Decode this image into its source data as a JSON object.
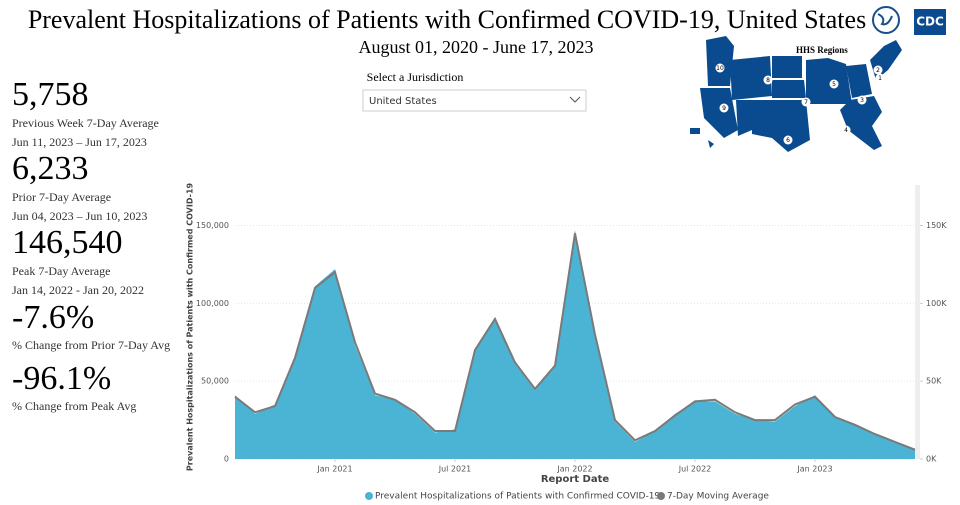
{
  "header": {
    "title": "Prevalent Hospitalizations of Patients with Confirmed COVID-19, United States",
    "subtitle": "August 01, 2020 - June 17, 2023",
    "logo_text": "CDC"
  },
  "kpis": [
    {
      "value": "5,758",
      "label": "Previous Week 7-Day Average",
      "dates": "Jun 11, 2023 – Jun 17, 2023"
    },
    {
      "value": "6,233",
      "label": "Prior 7-Day Average",
      "dates": "Jun 04, 2023 – Jun 10, 2023"
    },
    {
      "value": "146,540",
      "label": "Peak 7-Day Average",
      "dates": "Jan 14, 2022 - Jan 20, 2022"
    },
    {
      "value": "-7.6%",
      "label": "% Change from Prior 7-Day Avg"
    },
    {
      "value": "-96.1%",
      "label": "% Change from Peak Avg"
    }
  ],
  "filter": {
    "label": "Select a Jurisdiction",
    "value": "United States"
  },
  "map": {
    "title": "HHS Regions",
    "regions": [
      "1",
      "2",
      "3",
      "4",
      "5",
      "6",
      "7",
      "8",
      "9",
      "10"
    ]
  },
  "chart_data": {
    "type": "area",
    "x_label": "Report Date",
    "y_label": "Prevalent Hospitalizations of Patients with Confirmed COVID-19",
    "x": [
      "2020-08",
      "2020-09",
      "2020-10",
      "2020-11",
      "2020-12",
      "2021-01",
      "2021-02",
      "2021-03",
      "2021-04",
      "2021-05",
      "2021-06",
      "2021-07",
      "2021-08",
      "2021-09",
      "2021-10",
      "2021-11",
      "2021-12",
      "2022-01",
      "2022-02",
      "2022-03",
      "2022-04",
      "2022-05",
      "2022-06",
      "2022-07",
      "2022-08",
      "2022-09",
      "2022-10",
      "2022-11",
      "2022-12",
      "2023-01",
      "2023-02",
      "2023-03",
      "2023-04",
      "2023-05",
      "2023-06"
    ],
    "xlim": [
      "2020-08",
      "2023-06"
    ],
    "xticks": [
      {
        "value": "2021-01",
        "label": "Jan 2021"
      },
      {
        "value": "2021-07",
        "label": "Jul 2021"
      },
      {
        "value": "2022-01",
        "label": "Jan 2022"
      },
      {
        "value": "2022-07",
        "label": "Jul 2022"
      },
      {
        "value": "2023-01",
        "label": "Jan 2023"
      }
    ],
    "ylim": [
      0,
      176000
    ],
    "yticks": [
      0,
      {
        "value": 50000,
        "label": "50,000"
      },
      {
        "value": 100000,
        "label": "100,000"
      },
      {
        "value": 150000,
        "label": "150,000"
      }
    ],
    "y2lim": [
      0,
      176000
    ],
    "y2ticks": [
      {
        "value": 0,
        "label": "0K"
      },
      {
        "value": 50000,
        "label": "50K"
      },
      {
        "value": 100000,
        "label": "100K"
      },
      {
        "value": 150000,
        "label": "150K"
      }
    ],
    "series": [
      {
        "name": "Prevalent Hospitalizations of Patients with Confirmed COVID-19",
        "color": "#4bb3d4",
        "values": [
          41000,
          29000,
          35000,
          66000,
          111000,
          122000,
          73000,
          41000,
          38000,
          29000,
          17000,
          19000,
          71000,
          91000,
          61000,
          44000,
          61000,
          147000,
          78000,
          24000,
          11000,
          18000,
          29000,
          37000,
          37000,
          29000,
          25000,
          24000,
          34000,
          41000,
          27000,
          22000,
          16000,
          11000,
          6000
        ]
      },
      {
        "name": "7-Day Moving Average",
        "color": "#7a7a7a",
        "values": [
          40000,
          30000,
          34000,
          65000,
          110000,
          120000,
          75000,
          42000,
          38000,
          30000,
          18000,
          18000,
          70000,
          90000,
          62000,
          45000,
          60000,
          145000,
          80000,
          25000,
          12000,
          18000,
          28000,
          37000,
          38000,
          30000,
          25000,
          25000,
          35000,
          40000,
          27000,
          22000,
          16000,
          11000,
          6000
        ]
      }
    ]
  }
}
